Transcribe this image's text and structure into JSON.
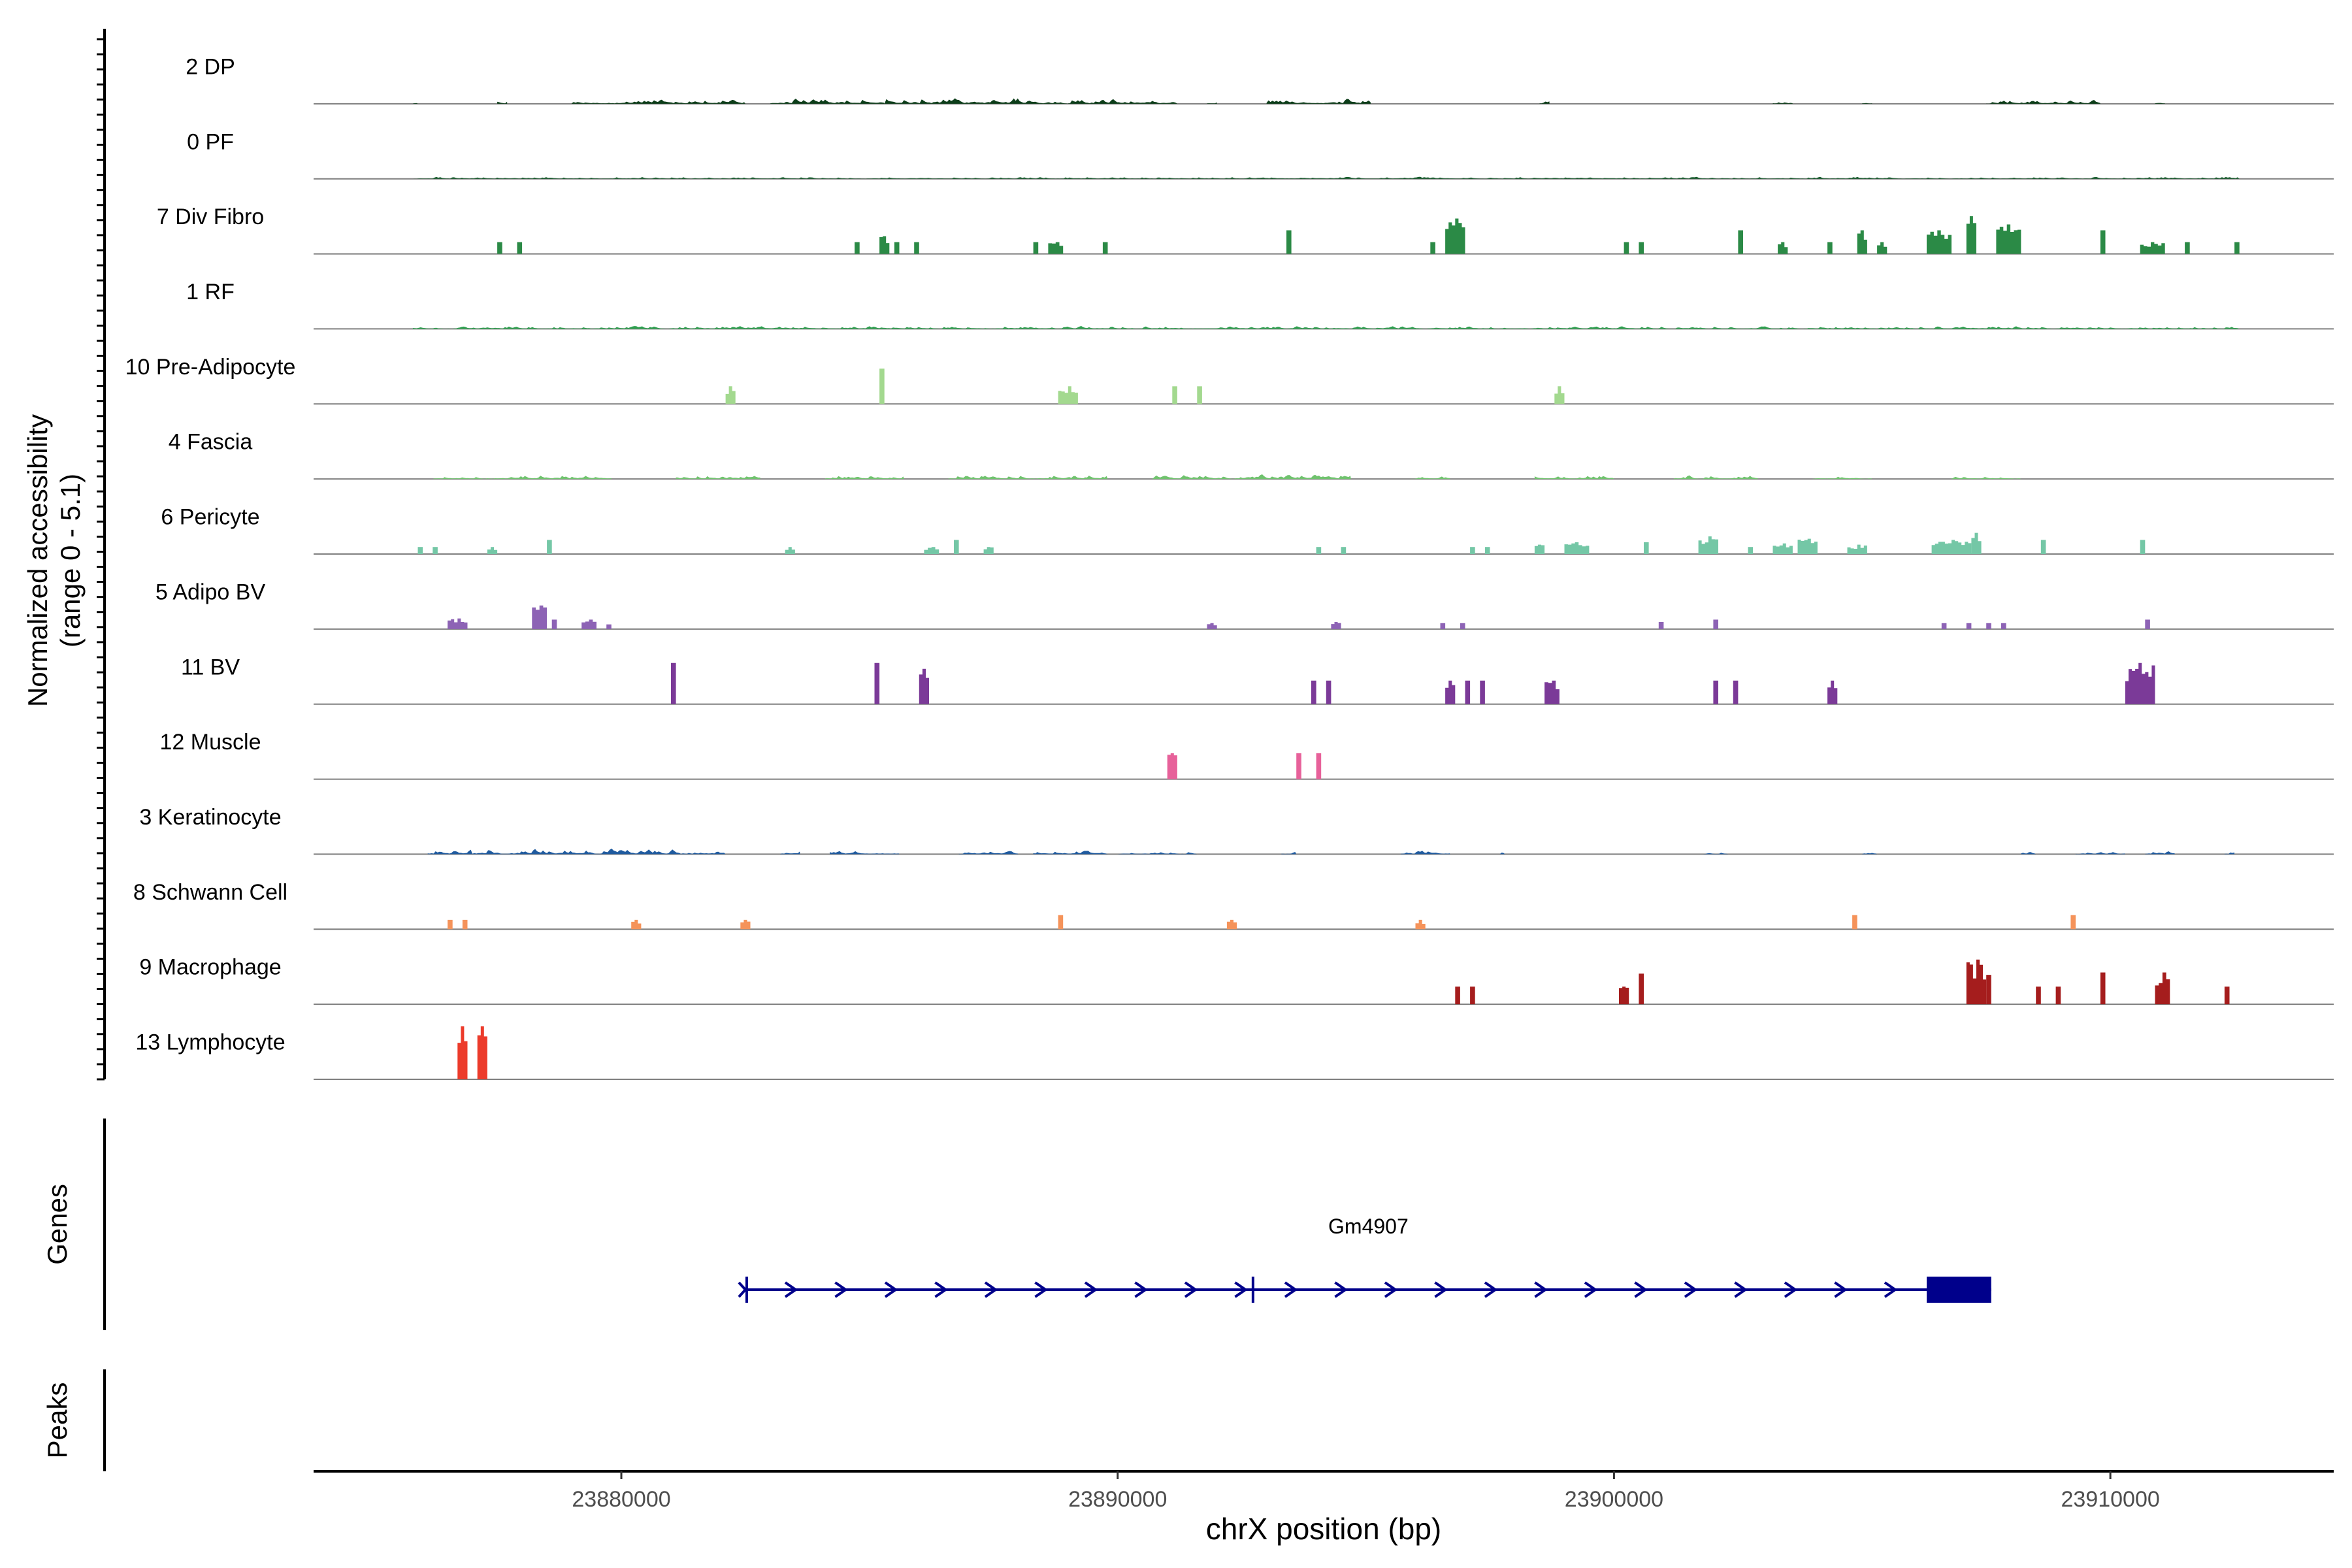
{
  "chart_data": {
    "type": "coverage_tracks",
    "coverage_panel": {
      "ylabel_line1": "Normalized accessibility",
      "ylabel_line2": "(range 0 - 5.1)",
      "ymax": 5.1,
      "tracks": [
        {
          "name": "2 DP",
          "color": "#0c3d19",
          "style": "noise",
          "regions": [
            [
              23875800,
              23875900,
              0.35
            ],
            [
              23877500,
              23877700,
              0.4
            ],
            [
              23879000,
              23882500,
              0.5
            ],
            [
              23883000,
              23885300,
              0.6
            ],
            [
              23885300,
              23889000,
              0.8
            ],
            [
              23889000,
              23891200,
              0.55
            ],
            [
              23891800,
              23892000,
              0.3
            ],
            [
              23893000,
              23895100,
              0.65
            ],
            [
              23898500,
              23898700,
              0.3
            ],
            [
              23903200,
              23903600,
              0.3
            ],
            [
              23905000,
              23905200,
              0.35
            ],
            [
              23907500,
              23909800,
              0.45
            ],
            [
              23910900,
              23911100,
              0.35
            ]
          ]
        },
        {
          "name": "0 PF",
          "color": "#145a2a",
          "style": "noise",
          "regions": [
            [
              23875800,
              23912600,
              0.22
            ]
          ]
        },
        {
          "name": "7 Div Fibro",
          "color": "#2b8a46",
          "style": "blocks",
          "regions": [
            [
              23877500,
              23877600,
              1.0
            ],
            [
              23877900,
              23878000,
              1.0
            ],
            [
              23884700,
              23884800,
              1.0
            ],
            [
              23885200,
              23885400,
              1.5
            ],
            [
              23885500,
              23885600,
              1.0
            ],
            [
              23885900,
              23886000,
              1.0
            ],
            [
              23888300,
              23888400,
              1.0
            ],
            [
              23888600,
              23888900,
              1.0
            ],
            [
              23889700,
              23889800,
              1.0
            ],
            [
              23893400,
              23893500,
              2.0
            ],
            [
              23896300,
              23896400,
              1.0
            ],
            [
              23896600,
              23897000,
              3.0
            ],
            [
              23900200,
              23900300,
              1.0
            ],
            [
              23900500,
              23900600,
              1.0
            ],
            [
              23902500,
              23902600,
              2.0
            ],
            [
              23903300,
              23903500,
              1.0
            ],
            [
              23904300,
              23904400,
              1.0
            ],
            [
              23904900,
              23905100,
              2.0
            ],
            [
              23905300,
              23905500,
              1.0
            ],
            [
              23906300,
              23906800,
              2.0
            ],
            [
              23907100,
              23907300,
              3.2
            ],
            [
              23907700,
              23908200,
              2.5
            ],
            [
              23909800,
              23909900,
              2.0
            ],
            [
              23910600,
              23911100,
              1.0
            ],
            [
              23911500,
              23911600,
              1.0
            ],
            [
              23912500,
              23912600,
              1.0
            ]
          ]
        },
        {
          "name": "1 RF",
          "color": "#2ea04f",
          "style": "noise",
          "regions": [
            [
              23875800,
              23912600,
              0.3
            ]
          ]
        },
        {
          "name": "10 Pre-Adipocyte",
          "color": "#a3d98f",
          "style": "blocks",
          "regions": [
            [
              23882100,
              23882300,
              1.5
            ],
            [
              23885200,
              23885300,
              3.0
            ],
            [
              23888800,
              23889200,
              1.5
            ],
            [
              23891100,
              23891200,
              1.5
            ],
            [
              23891600,
              23891700,
              1.5
            ],
            [
              23898800,
              23899000,
              1.5
            ]
          ]
        },
        {
          "name": "4 Fascia",
          "color": "#6fc26d",
          "style": "noise",
          "regions": [
            [
              23876200,
              23879800,
              0.45
            ],
            [
              23881100,
              23882800,
              0.45
            ],
            [
              23884100,
              23885700,
              0.4
            ],
            [
              23886500,
              23889800,
              0.5
            ],
            [
              23890700,
              23894700,
              0.5
            ],
            [
              23895900,
              23896700,
              0.3
            ],
            [
              23898400,
              23900000,
              0.55
            ],
            [
              23901200,
              23902900,
              0.4
            ],
            [
              23904000,
              23905200,
              0.35
            ],
            [
              23906800,
              23908200,
              0.3
            ]
          ]
        },
        {
          "name": "6 Pericyte",
          "color": "#74c7a6",
          "style": "blocks",
          "regions": [
            [
              23875900,
              23876000,
              0.6
            ],
            [
              23876200,
              23876300,
              0.6
            ],
            [
              23877300,
              23877500,
              0.6
            ],
            [
              23878500,
              23878600,
              1.2
            ],
            [
              23883300,
              23883500,
              0.6
            ],
            [
              23886100,
              23886400,
              0.6
            ],
            [
              23886700,
              23886800,
              1.2
            ],
            [
              23887300,
              23887500,
              0.6
            ],
            [
              23894000,
              23894100,
              0.6
            ],
            [
              23894500,
              23894600,
              0.6
            ],
            [
              23897100,
              23897200,
              0.6
            ],
            [
              23897400,
              23897500,
              0.6
            ],
            [
              23898400,
              23898600,
              0.8
            ],
            [
              23899000,
              23899500,
              1.0
            ],
            [
              23900600,
              23900700,
              1.0
            ],
            [
              23901700,
              23902100,
              1.5
            ],
            [
              23902700,
              23902800,
              0.6
            ],
            [
              23903200,
              23903600,
              0.9
            ],
            [
              23903700,
              23904100,
              1.3
            ],
            [
              23904700,
              23905100,
              0.8
            ],
            [
              23906400,
              23907200,
              1.2
            ],
            [
              23907200,
              23907400,
              1.8
            ],
            [
              23908600,
              23908700,
              1.2
            ],
            [
              23910600,
              23910700,
              1.2
            ]
          ]
        },
        {
          "name": "5 Adipo BV",
          "color": "#8d63b5",
          "style": "blocks",
          "regions": [
            [
              23876500,
              23876900,
              0.9
            ],
            [
              23878200,
              23878500,
              2.0
            ],
            [
              23878600,
              23878700,
              0.8
            ],
            [
              23879200,
              23879500,
              0.8
            ],
            [
              23879700,
              23879800,
              0.4
            ],
            [
              23891800,
              23892000,
              0.5
            ],
            [
              23894300,
              23894500,
              0.6
            ],
            [
              23896500,
              23896600,
              0.5
            ],
            [
              23896900,
              23897000,
              0.5
            ],
            [
              23900900,
              23901000,
              0.6
            ],
            [
              23902000,
              23902100,
              0.8
            ],
            [
              23906600,
              23906700,
              0.5
            ],
            [
              23907100,
              23907200,
              0.5
            ],
            [
              23907500,
              23907600,
              0.5
            ],
            [
              23907800,
              23907900,
              0.5
            ],
            [
              23910700,
              23910800,
              0.8
            ]
          ]
        },
        {
          "name": "11 BV",
          "color": "#7b3a98",
          "style": "blocks",
          "regions": [
            [
              23881000,
              23881100,
              3.5
            ],
            [
              23885100,
              23885200,
              3.5
            ],
            [
              23886000,
              23886200,
              3.0
            ],
            [
              23893900,
              23894000,
              2.0
            ],
            [
              23894200,
              23894300,
              2.0
            ],
            [
              23896600,
              23896800,
              2.0
            ],
            [
              23897000,
              23897100,
              2.0
            ],
            [
              23897300,
              23897400,
              2.0
            ],
            [
              23898600,
              23898900,
              2.0
            ],
            [
              23902000,
              23902100,
              2.0
            ],
            [
              23902400,
              23902500,
              2.0
            ],
            [
              23904300,
              23904500,
              2.0
            ],
            [
              23910300,
              23910900,
              3.5
            ]
          ]
        },
        {
          "name": "12 Muscle",
          "color": "#e7619a",
          "style": "blocks",
          "regions": [
            [
              23891000,
              23891200,
              2.2
            ],
            [
              23893600,
              23893700,
              2.2
            ],
            [
              23894000,
              23894100,
              2.2
            ]
          ]
        },
        {
          "name": "3 Keratinocyte",
          "color": "#1f5a9e",
          "style": "noise",
          "regions": [
            [
              23876100,
              23877000,
              0.5
            ],
            [
              23877000,
              23881200,
              0.6
            ],
            [
              23881200,
              23882100,
              0.55
            ],
            [
              23883200,
              23883600,
              0.4
            ],
            [
              23884200,
              23885600,
              0.45
            ],
            [
              23886800,
              23888000,
              0.35
            ],
            [
              23888300,
              23889800,
              0.4
            ],
            [
              23890000,
              23891600,
              0.3
            ],
            [
              23893300,
              23893600,
              0.3
            ],
            [
              23895700,
              23896700,
              0.45
            ],
            [
              23897700,
              23897800,
              0.3
            ],
            [
              23901800,
              23902300,
              0.35
            ],
            [
              23905000,
              23905300,
              0.3
            ],
            [
              23908200,
              23908500,
              0.3
            ],
            [
              23909300,
              23910300,
              0.3
            ],
            [
              23910700,
              23911300,
              0.35
            ],
            [
              23912300,
              23912500,
              0.3
            ]
          ]
        },
        {
          "name": "8 Schwann Cell",
          "color": "#f5935a",
          "style": "blocks",
          "regions": [
            [
              23876500,
              23876600,
              0.8
            ],
            [
              23876800,
              23876900,
              0.8
            ],
            [
              23880200,
              23880400,
              0.8
            ],
            [
              23882400,
              23882600,
              0.8
            ],
            [
              23888800,
              23888900,
              1.2
            ],
            [
              23892200,
              23892400,
              0.8
            ],
            [
              23896000,
              23896200,
              0.8
            ],
            [
              23904800,
              23904900,
              1.2
            ],
            [
              23909200,
              23909300,
              1.2
            ]
          ]
        },
        {
          "name": "9 Macrophage",
          "color": "#a51d1d",
          "style": "blocks",
          "regions": [
            [
              23896800,
              23896900,
              1.5
            ],
            [
              23897100,
              23897200,
              1.5
            ],
            [
              23900100,
              23900300,
              1.5
            ],
            [
              23900500,
              23900600,
              2.6
            ],
            [
              23907100,
              23907500,
              3.8
            ],
            [
              23907500,
              23907600,
              2.5
            ],
            [
              23908500,
              23908600,
              1.5
            ],
            [
              23908900,
              23909000,
              1.5
            ],
            [
              23909800,
              23909900,
              2.7
            ],
            [
              23910900,
              23911200,
              2.7
            ],
            [
              23912300,
              23912400,
              1.5
            ]
          ]
        },
        {
          "name": "13 Lymphocyte",
          "color": "#ec3b2b",
          "style": "blocks",
          "regions": [
            [
              23876700,
              23876900,
              4.5
            ],
            [
              23877100,
              23877300,
              4.5
            ]
          ]
        }
      ]
    },
    "gene_panel": {
      "ylabel": "Genes",
      "gene_name": "Gm4907",
      "strand": "+",
      "start": 23882500,
      "end": 23907600,
      "exons": [
        [
          23882500,
          23882550
        ],
        [
          23892700,
          23892750
        ],
        [
          23906300,
          23907600
        ]
      ],
      "color": "#00008b"
    },
    "peaks_panel": {
      "ylabel": "Peaks"
    },
    "x_axis": {
      "label": "chrX position (bp)",
      "xlim": [
        23873800,
        23914500
      ],
      "ticks": [
        23880000,
        23890000,
        23900000,
        23910000
      ],
      "tick_labels": [
        "23880000",
        "23890000",
        "23900000",
        "23910000"
      ]
    }
  }
}
